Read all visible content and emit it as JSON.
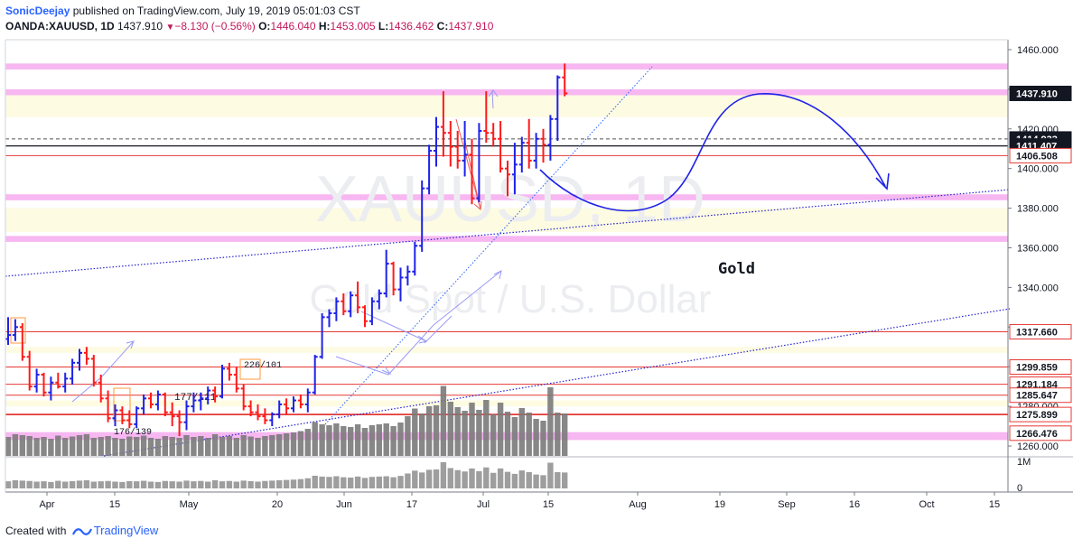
{
  "header": {
    "author": "SonicDeejay",
    "published_text": "published on TradingView.com, July 19, 2019 05:01:03 CST",
    "symbol": "OANDA:XAUUSD, 1D",
    "last": "1437.910",
    "change": "−8.130 (−0.56%)",
    "open_label": "O:",
    "open": "1446.040",
    "high_label": "H:",
    "high": "1453.005",
    "low_label": "L:",
    "low": "1436.462",
    "close_label": "C:",
    "close": "1437.910"
  },
  "watermark": {
    "symbol": "XAUUSD, 1D",
    "description": "Gold Spot / U.S. Dollar"
  },
  "annotations": {
    "gold_text": "Gold",
    "label_a": "226/101",
    "label_b": "177/111",
    "label_c": "176/139"
  },
  "footer": {
    "created_with": "Created with",
    "brand": "TradingView"
  },
  "colors": {
    "up": "#1e22e8",
    "down": "#ff1a1a",
    "zone_pink": "#f7b7f1",
    "zone_yellow": "#fdfbe1",
    "volume": "#7a7a7a",
    "trend": "#2424d0"
  },
  "chart_data": {
    "type": "ohlc",
    "symbol": "OANDA:XAUUSD",
    "interval": "1D",
    "ylim": [
      1255,
      1465
    ],
    "y_ticks": [
      "1460.000",
      "1440.000",
      "1420.000",
      "1400.000",
      "1380.000",
      "1360.000",
      "1340.000",
      "1320.000",
      "1300.000",
      "1280.000",
      "1260.000"
    ],
    "x_ticks": [
      "Apr",
      "15",
      "May",
      "20",
      "Jun",
      "17",
      "Jul",
      "15",
      "Aug",
      "19",
      "Sep",
      "16",
      "Oct",
      "15"
    ],
    "price_labels": [
      {
        "text": "1437.910",
        "y": 1437.91,
        "style": "dark"
      },
      {
        "text": "1414.933",
        "y": 1414.933,
        "style": "dark"
      },
      {
        "text": "1411.407",
        "y": 1411.407,
        "style": "dark"
      },
      {
        "text": "1406.508",
        "y": 1406.508,
        "style": "red"
      },
      {
        "text": "1317.660",
        "y": 1317.66,
        "style": "red"
      },
      {
        "text": "1299.859",
        "y": 1299.859,
        "style": "red"
      },
      {
        "text": "1291.184",
        "y": 1291.184,
        "style": "red"
      },
      {
        "text": "1285.647",
        "y": 1285.647,
        "style": "red"
      },
      {
        "text": "1275.899",
        "y": 1275.899,
        "style": "red"
      },
      {
        "text": "1266.476",
        "y": 1266.476,
        "style": "red"
      }
    ],
    "volume_axis_labels": [
      "1M",
      "0"
    ],
    "pink_zones": [
      [
        1450,
        1453
      ],
      [
        1437,
        1440
      ],
      [
        1384,
        1387
      ],
      [
        1363,
        1366
      ],
      [
        1263,
        1267
      ]
    ],
    "yellow_zones": [
      [
        1426,
        1437
      ],
      [
        1368,
        1380
      ],
      [
        1307,
        1310
      ],
      [
        1280,
        1283
      ]
    ],
    "h_lines": [
      {
        "y": 1414.933,
        "style": "dashed"
      },
      {
        "y": 1411.407,
        "style": "solid-black"
      },
      {
        "y": 1406.508,
        "style": "red"
      },
      {
        "y": 1317.66,
        "style": "red"
      },
      {
        "y": 1299.859,
        "style": "red"
      },
      {
        "y": 1291.184,
        "style": "red"
      },
      {
        "y": 1285.647,
        "style": "red"
      },
      {
        "y": 1275.899,
        "style": "red-thick"
      }
    ],
    "bars": [
      {
        "o": 1314,
        "h": 1325,
        "l": 1311,
        "c": 1316
      },
      {
        "o": 1316,
        "h": 1324,
        "l": 1313,
        "c": 1320
      },
      {
        "o": 1320,
        "h": 1322,
        "l": 1303,
        "c": 1305
      },
      {
        "o": 1305,
        "h": 1308,
        "l": 1288,
        "c": 1290
      },
      {
        "o": 1290,
        "h": 1299,
        "l": 1287,
        "c": 1296
      },
      {
        "o": 1296,
        "h": 1297,
        "l": 1285,
        "c": 1287
      },
      {
        "o": 1287,
        "h": 1295,
        "l": 1283,
        "c": 1292
      },
      {
        "o": 1292,
        "h": 1297,
        "l": 1289,
        "c": 1290
      },
      {
        "o": 1290,
        "h": 1297,
        "l": 1287,
        "c": 1294
      },
      {
        "o": 1294,
        "h": 1304,
        "l": 1291,
        "c": 1302
      },
      {
        "o": 1302,
        "h": 1309,
        "l": 1298,
        "c": 1307
      },
      {
        "o": 1307,
        "h": 1310,
        "l": 1301,
        "c": 1304
      },
      {
        "o": 1304,
        "h": 1306,
        "l": 1290,
        "c": 1292
      },
      {
        "o": 1292,
        "h": 1296,
        "l": 1282,
        "c": 1284
      },
      {
        "o": 1284,
        "h": 1288,
        "l": 1272,
        "c": 1274
      },
      {
        "o": 1274,
        "h": 1281,
        "l": 1270,
        "c": 1278
      },
      {
        "o": 1278,
        "h": 1280,
        "l": 1271,
        "c": 1273
      },
      {
        "o": 1273,
        "h": 1278,
        "l": 1269,
        "c": 1271
      },
      {
        "o": 1271,
        "h": 1280,
        "l": 1269,
        "c": 1279
      },
      {
        "o": 1279,
        "h": 1286,
        "l": 1276,
        "c": 1284
      },
      {
        "o": 1284,
        "h": 1287,
        "l": 1279,
        "c": 1281
      },
      {
        "o": 1281,
        "h": 1288,
        "l": 1278,
        "c": 1286
      },
      {
        "o": 1286,
        "h": 1287,
        "l": 1275,
        "c": 1277
      },
      {
        "o": 1277,
        "h": 1282,
        "l": 1270,
        "c": 1275
      },
      {
        "o": 1275,
        "h": 1278,
        "l": 1265,
        "c": 1272
      },
      {
        "o": 1272,
        "h": 1283,
        "l": 1268,
        "c": 1280
      },
      {
        "o": 1280,
        "h": 1287,
        "l": 1277,
        "c": 1283
      },
      {
        "o": 1283,
        "h": 1287,
        "l": 1278,
        "c": 1284
      },
      {
        "o": 1284,
        "h": 1290,
        "l": 1281,
        "c": 1288
      },
      {
        "o": 1288,
        "h": 1290,
        "l": 1282,
        "c": 1285
      },
      {
        "o": 1285,
        "h": 1301,
        "l": 1284,
        "c": 1299
      },
      {
        "o": 1299,
        "h": 1302,
        "l": 1293,
        "c": 1296
      },
      {
        "o": 1296,
        "h": 1300,
        "l": 1287,
        "c": 1289
      },
      {
        "o": 1289,
        "h": 1291,
        "l": 1278,
        "c": 1280
      },
      {
        "o": 1280,
        "h": 1283,
        "l": 1275,
        "c": 1277
      },
      {
        "o": 1277,
        "h": 1281,
        "l": 1273,
        "c": 1275
      },
      {
        "o": 1275,
        "h": 1279,
        "l": 1271,
        "c": 1273
      },
      {
        "o": 1273,
        "h": 1277,
        "l": 1270,
        "c": 1276
      },
      {
        "o": 1276,
        "h": 1283,
        "l": 1274,
        "c": 1281
      },
      {
        "o": 1281,
        "h": 1284,
        "l": 1276,
        "c": 1279
      },
      {
        "o": 1279,
        "h": 1285,
        "l": 1277,
        "c": 1283
      },
      {
        "o": 1283,
        "h": 1286,
        "l": 1279,
        "c": 1281
      },
      {
        "o": 1281,
        "h": 1289,
        "l": 1277,
        "c": 1287
      },
      {
        "o": 1287,
        "h": 1306,
        "l": 1286,
        "c": 1305
      },
      {
        "o": 1305,
        "h": 1327,
        "l": 1304,
        "c": 1325
      },
      {
        "o": 1325,
        "h": 1329,
        "l": 1320,
        "c": 1327
      },
      {
        "o": 1327,
        "h": 1335,
        "l": 1323,
        "c": 1333
      },
      {
        "o": 1333,
        "h": 1337,
        "l": 1326,
        "c": 1328
      },
      {
        "o": 1328,
        "h": 1338,
        "l": 1325,
        "c": 1336
      },
      {
        "o": 1336,
        "h": 1343,
        "l": 1327,
        "c": 1330
      },
      {
        "o": 1330,
        "h": 1331,
        "l": 1320,
        "c": 1323
      },
      {
        "o": 1323,
        "h": 1335,
        "l": 1321,
        "c": 1333
      },
      {
        "o": 1333,
        "h": 1339,
        "l": 1329,
        "c": 1337
      },
      {
        "o": 1337,
        "h": 1359,
        "l": 1335,
        "c": 1352
      },
      {
        "o": 1352,
        "h": 1353,
        "l": 1336,
        "c": 1339
      },
      {
        "o": 1339,
        "h": 1350,
        "l": 1333,
        "c": 1345
      },
      {
        "o": 1345,
        "h": 1351,
        "l": 1341,
        "c": 1348
      },
      {
        "o": 1348,
        "h": 1363,
        "l": 1346,
        "c": 1361
      },
      {
        "o": 1361,
        "h": 1394,
        "l": 1358,
        "c": 1390
      },
      {
        "o": 1390,
        "h": 1412,
        "l": 1387,
        "c": 1409
      },
      {
        "o": 1409,
        "h": 1426,
        "l": 1401,
        "c": 1421
      },
      {
        "o": 1421,
        "h": 1439,
        "l": 1406,
        "c": 1418
      },
      {
        "o": 1418,
        "h": 1424,
        "l": 1401,
        "c": 1411
      },
      {
        "o": 1411,
        "h": 1419,
        "l": 1400,
        "c": 1404
      },
      {
        "o": 1404,
        "h": 1424,
        "l": 1396,
        "c": 1407
      },
      {
        "o": 1407,
        "h": 1415,
        "l": 1382,
        "c": 1385
      },
      {
        "o": 1385,
        "h": 1423,
        "l": 1383,
        "c": 1419
      },
      {
        "o": 1419,
        "h": 1439,
        "l": 1413,
        "c": 1418
      },
      {
        "o": 1418,
        "h": 1423,
        "l": 1411,
        "c": 1415
      },
      {
        "o": 1415,
        "h": 1424,
        "l": 1398,
        "c": 1400
      },
      {
        "o": 1400,
        "h": 1404,
        "l": 1386,
        "c": 1397
      },
      {
        "o": 1397,
        "h": 1413,
        "l": 1387,
        "c": 1402
      },
      {
        "o": 1402,
        "h": 1416,
        "l": 1398,
        "c": 1413
      },
      {
        "o": 1413,
        "h": 1425,
        "l": 1400,
        "c": 1404
      },
      {
        "o": 1404,
        "h": 1418,
        "l": 1400,
        "c": 1415
      },
      {
        "o": 1415,
        "h": 1420,
        "l": 1403,
        "c": 1412
      },
      {
        "o": 1412,
        "h": 1427,
        "l": 1404,
        "c": 1425
      },
      {
        "o": 1425,
        "h": 1447,
        "l": 1414,
        "c": 1446
      },
      {
        "o": 1446,
        "h": 1453.005,
        "l": 1436.462,
        "c": 1437.91
      }
    ],
    "volume": {
      "ylim": [
        0,
        1.6
      ],
      "values": [
        0.42,
        0.48,
        0.46,
        0.44,
        0.4,
        0.42,
        0.38,
        0.45,
        0.4,
        0.43,
        0.46,
        0.48,
        0.4,
        0.42,
        0.44,
        0.4,
        0.38,
        0.43,
        0.42,
        0.45,
        0.4,
        0.38,
        0.44,
        0.42,
        0.4,
        0.46,
        0.42,
        0.44,
        0.4,
        0.48,
        0.42,
        0.44,
        0.4,
        0.46,
        0.43,
        0.4,
        0.44,
        0.46,
        0.48,
        0.5,
        0.52,
        0.55,
        0.6,
        0.75,
        0.7,
        0.68,
        0.72,
        0.66,
        0.64,
        0.7,
        0.62,
        0.68,
        0.7,
        0.72,
        0.66,
        0.74,
        0.88,
        1.05,
        0.94,
        1.1,
        1.12,
        1.55,
        1.2,
        1.08,
        1.0,
        1.18,
        1.02,
        1.24,
        0.92,
        1.18,
        0.98,
        0.86,
        1.06,
        0.96,
        0.82,
        0.78,
        1.52,
        0.96,
        0.94
      ],
      "up": [
        false,
        true,
        false,
        false,
        true,
        false,
        true,
        false,
        true,
        true,
        true,
        false,
        false,
        false,
        false,
        true,
        false,
        false,
        true,
        true,
        false,
        true,
        false,
        false,
        false,
        true,
        true,
        true,
        true,
        false,
        true,
        false,
        false,
        false,
        false,
        false,
        false,
        true,
        true,
        false,
        true,
        false,
        true,
        true,
        true,
        true,
        true,
        false,
        true,
        false,
        false,
        true,
        true,
        true,
        false,
        true,
        true,
        true,
        true,
        true,
        true,
        false,
        false,
        false,
        true,
        false,
        true,
        false,
        false,
        false,
        false,
        true,
        true,
        false,
        true,
        false,
        true,
        true,
        false
      ]
    }
  }
}
